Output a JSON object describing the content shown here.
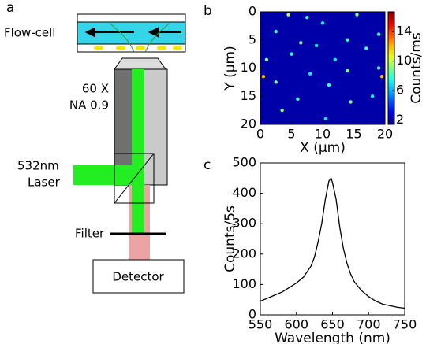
{
  "diagram": {
    "panel_label": "a",
    "flow_cell": "Flow-cell",
    "objective_mag": "60 X",
    "objective_na": "NA 0.9",
    "laser_line1": "532nm",
    "laser_line2": "Laser",
    "filter": "Filter",
    "detector": "Detector"
  },
  "chart_data": [
    {
      "type": "heatmap",
      "panel_label": "b",
      "xlabel": "X (μm)",
      "ylabel": "Y (μm)",
      "xlim": [
        0,
        20
      ],
      "ylim": [
        0,
        20
      ],
      "y_inverted": true,
      "xticks": [
        0,
        5,
        10,
        15,
        20
      ],
      "yticks": [
        0,
        5,
        10,
        15,
        20
      ],
      "colorbar_label": "Counts/ms",
      "clim": [
        1.4,
        16.7
      ],
      "cticks": [
        2,
        6,
        10,
        14
      ],
      "colormap": "jet",
      "background": 2,
      "spots": {
        "x": [
          4.5,
          7.5,
          15.5,
          10,
          2.5,
          6.5,
          14,
          19,
          9,
          5,
          12,
          1,
          17,
          2.5,
          14,
          8,
          19,
          0.5,
          19.5,
          11,
          6,
          14.5,
          18,
          3.5,
          10.5
        ],
        "y": [
          0.5,
          1,
          0.5,
          2,
          3.5,
          5.5,
          5,
          4,
          6,
          7.5,
          8.5,
          8.5,
          6.5,
          12.5,
          10.5,
          11,
          10,
          11.5,
          11.5,
          13,
          15.5,
          16,
          15,
          17.5,
          19
        ],
        "values": [
          10,
          8,
          9,
          7,
          8,
          9,
          8,
          8,
          7,
          8,
          7,
          9,
          8,
          9,
          9,
          7,
          8,
          12,
          12,
          8,
          8,
          9,
          7,
          9,
          7
        ]
      }
    },
    {
      "type": "line",
      "panel_label": "c",
      "xlabel": "Wavelength (nm)",
      "ylabel": "Counts/5s",
      "x": [
        550,
        560,
        570,
        580,
        590,
        600,
        610,
        620,
        625,
        630,
        635,
        640,
        645,
        648,
        650,
        655,
        660,
        665,
        670,
        675,
        680,
        690,
        700,
        710,
        720,
        730,
        740,
        750
      ],
      "values": [
        45,
        55,
        65,
        75,
        90,
        105,
        125,
        160,
        190,
        240,
        300,
        380,
        440,
        450,
        435,
        380,
        290,
        220,
        170,
        135,
        110,
        80,
        60,
        45,
        35,
        30,
        25,
        22
      ],
      "color": "#000000",
      "xlim": [
        550,
        750
      ],
      "ylim": [
        0,
        500
      ],
      "xticks": [
        550,
        600,
        650,
        700,
        750
      ],
      "yticks": [
        0,
        100,
        200,
        300,
        400,
        500
      ]
    }
  ]
}
